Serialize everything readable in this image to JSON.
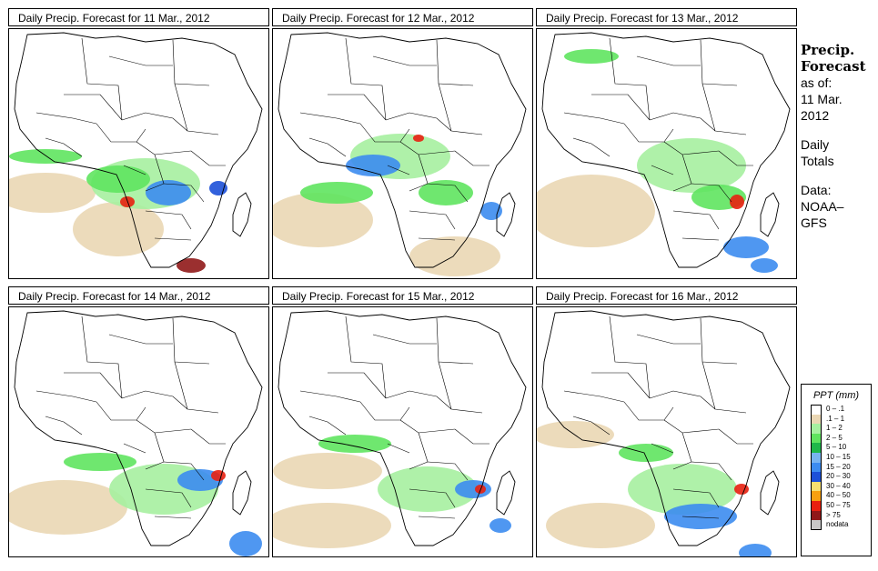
{
  "panels": [
    {
      "title": "Daily Precip. Forecast for  11 Mar., 2012"
    },
    {
      "title": "Daily Precip. Forecast for  12 Mar., 2012"
    },
    {
      "title": "Daily Precip. Forecast for  13 Mar., 2012"
    },
    {
      "title": "Daily Precip. Forecast for  14 Mar., 2012"
    },
    {
      "title": "Daily Precip. Forecast for  15 Mar., 2012"
    },
    {
      "title": "Daily Precip. Forecast for  16 Mar., 2012"
    }
  ],
  "side": {
    "heading_line1": "Precip.",
    "heading_line2": "Forecast",
    "asof_line1": "as of:",
    "asof_line2": "11 Mar.",
    "asof_line3": "2012",
    "totals_line1": "Daily",
    "totals_line2": "Totals",
    "data_line1": "Data:",
    "data_line2": "NOAA–",
    "data_line3": "GFS"
  },
  "legend": {
    "title": "PPT (mm)",
    "items": [
      {
        "label": "0 – .1",
        "color": "#ffffff"
      },
      {
        "label": ".1 – 1",
        "color": "#ead7b4"
      },
      {
        "label": "1 – 2",
        "color": "#a6f0a0"
      },
      {
        "label": "2 – 5",
        "color": "#5fe45f"
      },
      {
        "label": "5 – 10",
        "color": "#1fb84a"
      },
      {
        "label": "10 – 15",
        "color": "#78b4f0"
      },
      {
        "label": "15 – 20",
        "color": "#3c8cf0"
      },
      {
        "label": "20 – 30",
        "color": "#1c50d8"
      },
      {
        "label": "30 – 40",
        "color": "#f8e070"
      },
      {
        "label": "40 – 50",
        "color": "#f8a010"
      },
      {
        "label": "50 – 75",
        "color": "#e82010"
      },
      {
        "label": "> 75",
        "color": "#901818"
      },
      {
        "label": "nodata",
        "color": "#c8c8c8"
      }
    ]
  }
}
